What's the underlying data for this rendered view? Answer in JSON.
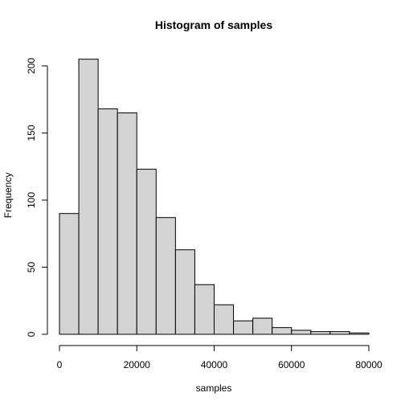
{
  "chart_data": {
    "type": "bar",
    "title": "Histogram of samples",
    "xlabel": "samples",
    "ylabel": "Frequency",
    "bin_edges": [
      0,
      5000,
      10000,
      15000,
      20000,
      25000,
      30000,
      35000,
      40000,
      45000,
      50000,
      55000,
      60000,
      65000,
      70000,
      75000,
      80000
    ],
    "values": [
      90,
      205,
      168,
      165,
      123,
      87,
      63,
      37,
      22,
      10,
      12,
      5,
      3,
      2,
      2,
      1
    ],
    "xlim": [
      0,
      80000
    ],
    "ylim": [
      0,
      205
    ],
    "x_ticks": [
      0,
      20000,
      40000,
      60000,
      80000
    ],
    "y_ticks": [
      0,
      50,
      100,
      150,
      200
    ],
    "x_tick_labels": [
      "0",
      "20000",
      "40000",
      "60000",
      "80000"
    ],
    "y_tick_labels": [
      "0",
      "50",
      "100",
      "150",
      "200"
    ],
    "bar_color": "#d3d3d3",
    "edge_color": "#000000",
    "grid": false
  }
}
